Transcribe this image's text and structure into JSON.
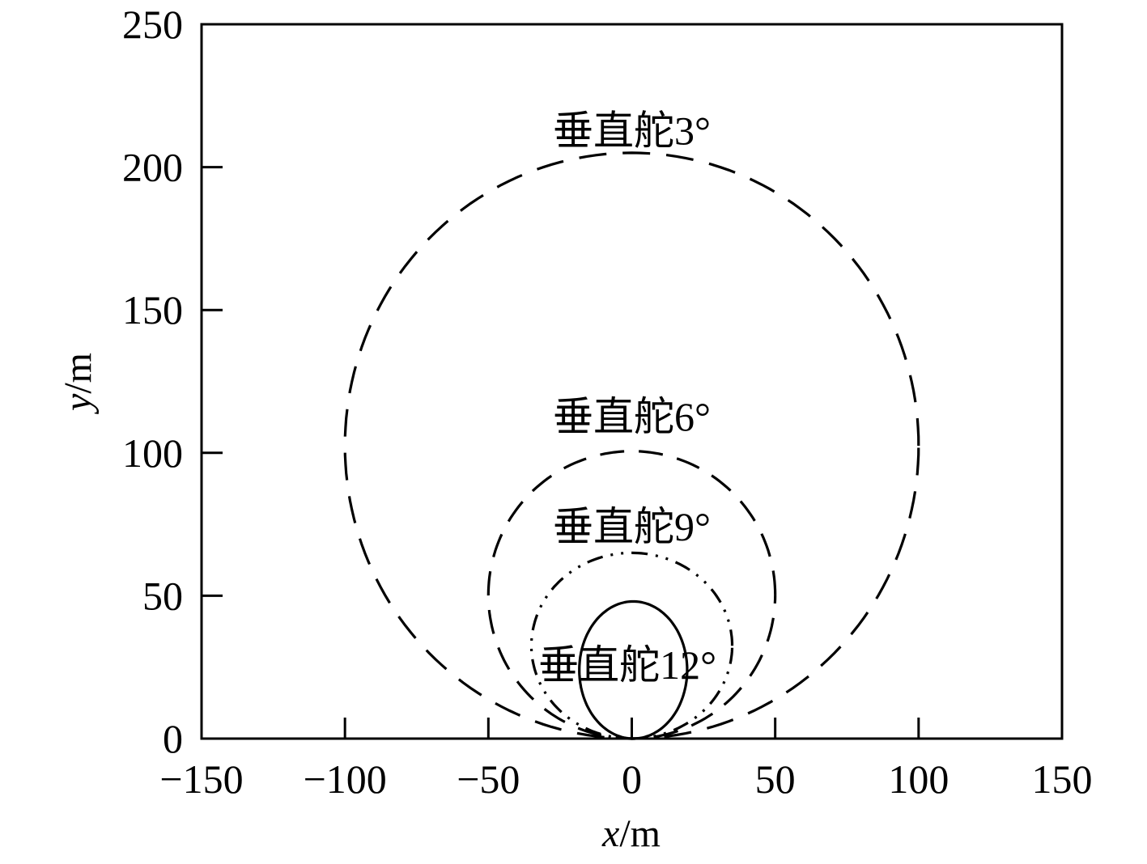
{
  "chart_data": {
    "type": "line",
    "xlabel": {
      "var": "x",
      "unit": "/m"
    },
    "ylabel": {
      "var": "y",
      "unit": "/m"
    },
    "xlim": [
      -150,
      150
    ],
    "ylim": [
      0,
      250
    ],
    "xticks": [
      -150,
      -100,
      -50,
      0,
      50,
      100,
      150
    ],
    "yticks": [
      0,
      50,
      100,
      150,
      200,
      250
    ],
    "xtick_labels": [
      "−150",
      "−100",
      "−50",
      "0",
      "50",
      "100",
      "150"
    ],
    "ytick_labels": [
      "0",
      "50",
      "100",
      "150",
      "200",
      "250"
    ],
    "grid": false,
    "series": [
      {
        "name": "垂直舵3°",
        "style": "long-dash",
        "center": [
          0,
          102.5
        ],
        "radius": [
          100,
          102.5
        ],
        "label_at": [
          0,
          213
        ]
      },
      {
        "name": "垂直舵6°",
        "style": "dash",
        "center": [
          0,
          50.3
        ],
        "radius": [
          50,
          50.3
        ],
        "label_at": [
          0,
          113
        ]
      },
      {
        "name": "垂直舵9°",
        "style": "dash-dot-dot",
        "center": [
          0,
          32.5
        ],
        "radius": [
          35,
          32.5
        ],
        "label_at": [
          0,
          74.5
        ]
      },
      {
        "name": "垂直舵12°",
        "style": "solid",
        "center": [
          0.5,
          24
        ],
        "radius": [
          18.8,
          24
        ],
        "label_at": [
          -1.5,
          26
        ]
      }
    ]
  }
}
